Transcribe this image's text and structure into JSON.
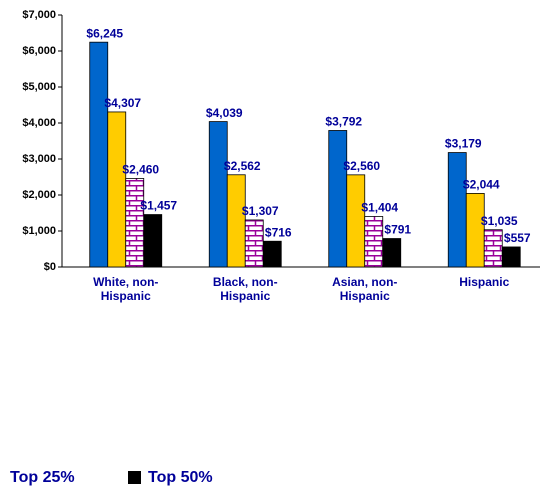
{
  "chart_data": {
    "type": "bar",
    "categories": [
      "White, non-Hispanic",
      "Black, non-Hispanic",
      "Asian, non-Hispanic",
      "Hispanic"
    ],
    "series": [
      {
        "color": "#0066cc",
        "values": [
          6245,
          4039,
          3792,
          3179
        ],
        "value_labels": [
          "$6,245",
          "$4,039",
          "$3,792",
          "$3,179"
        ]
      },
      {
        "color": "#ffcc00",
        "values": [
          4307,
          2562,
          2560,
          2044
        ],
        "value_labels": [
          "$4,307",
          "$2,562",
          "$2,560",
          "$2,044"
        ]
      },
      {
        "name": "Top 25%",
        "color": "#990099",
        "pattern": "brick",
        "values": [
          2460,
          1307,
          1404,
          1035
        ],
        "value_labels": [
          "$2,460",
          "$1,307",
          "$1,404",
          "$1,035"
        ]
      },
      {
        "name": "Top 50%",
        "color": "#000000",
        "values": [
          1457,
          716,
          791,
          557
        ],
        "value_labels": [
          "$1,457",
          "$716",
          "$791",
          "$557"
        ]
      }
    ],
    "ylim": [
      0,
      7000
    ],
    "yticks": [
      {
        "value": 0,
        "label": "$0"
      },
      {
        "value": 1000,
        "label": "$1,000"
      },
      {
        "value": 2000,
        "label": "$2,000"
      },
      {
        "value": 3000,
        "label": "$3,000"
      },
      {
        "value": 4000,
        "label": "$4,000"
      },
      {
        "value": 5000,
        "label": "$5,000"
      },
      {
        "value": 6000,
        "label": "$6,000"
      },
      {
        "value": 7000,
        "label": "$7,000"
      }
    ],
    "grid": false
  }
}
